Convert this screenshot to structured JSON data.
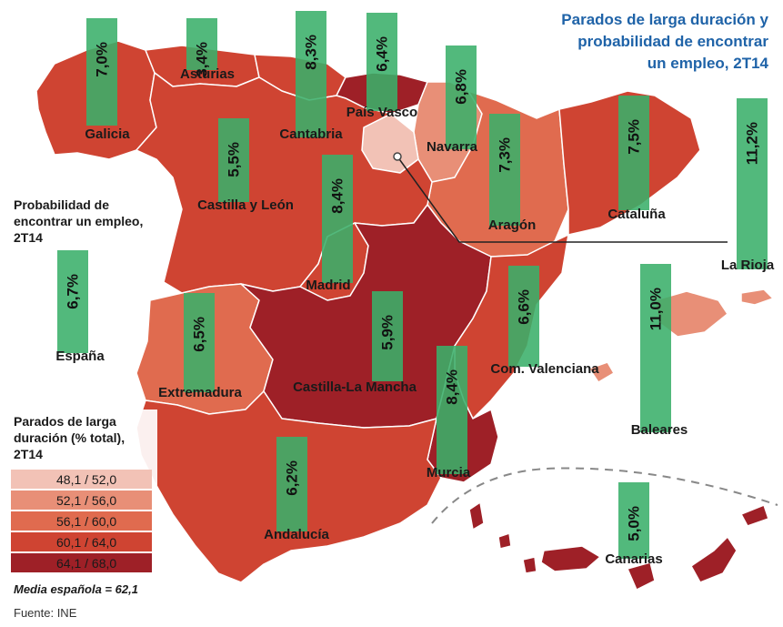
{
  "title": [
    "Parados de larga duración y",
    "probabilidad de encontrar",
    "un empleo, 2T14"
  ],
  "prob_caption": [
    "Probabilidad de",
    "encontrar un empleo,",
    "2T14"
  ],
  "legend": {
    "title": [
      "Parados de larga",
      "duración (% total),",
      "2T14"
    ],
    "classes": [
      {
        "label": "48,1 / 52,0",
        "color": "#f2c2b6"
      },
      {
        "label": "52,1 / 56,0",
        "color": "#e88f77"
      },
      {
        "label": "56,1 / 60,0",
        "color": "#e06b4f"
      },
      {
        "label": "60,1 / 64,0",
        "color": "#cf4432"
      },
      {
        "label": "64,1 / 68,0",
        "color": "#9e2027"
      }
    ]
  },
  "average_note": "Media española = 62,1",
  "source": "Fuente: INE",
  "colors": {
    "bar": "#3aaf6a",
    "title": "#1f63a8"
  },
  "regions": [
    {
      "name": "Galicia",
      "prob": "7,0%",
      "prob_value": 7.0,
      "class": 3
    },
    {
      "name": "Asturias",
      "prob": "3,4%",
      "prob_value": 3.4,
      "class": 3
    },
    {
      "name": "Cantabria",
      "prob": "8,3%",
      "prob_value": 8.3,
      "class": 3
    },
    {
      "name": "País Vasco",
      "prob": "6,4%",
      "prob_value": 6.4,
      "class": 4
    },
    {
      "name": "Navarra",
      "prob": "6,8%",
      "prob_value": 6.8,
      "class": 1
    },
    {
      "name": "Aragón",
      "prob": "7,3%",
      "prob_value": 7.3,
      "class": 2
    },
    {
      "name": "Cataluña",
      "prob": "7,5%",
      "prob_value": 7.5,
      "class": 3
    },
    {
      "name": "La Rioja",
      "prob": "11,2%",
      "prob_value": 11.2,
      "class": 0
    },
    {
      "name": "Castilla y León",
      "prob": "5,5%",
      "prob_value": 5.5,
      "class": 3
    },
    {
      "name": "Madrid",
      "prob": "8,4%",
      "prob_value": 8.4,
      "class": 3
    },
    {
      "name": "España",
      "prob": "6,7%",
      "prob_value": 6.7,
      "class": null
    },
    {
      "name": "Extremadura",
      "prob": "6,5%",
      "prob_value": 6.5,
      "class": 2
    },
    {
      "name": "Castilla-La Mancha",
      "prob": "5,9%",
      "prob_value": 5.9,
      "class": 4
    },
    {
      "name": "Com. Valenciana",
      "prob": "6,6%",
      "prob_value": 6.6,
      "class": 3
    },
    {
      "name": "Murcia",
      "prob": "8,4%",
      "prob_value": 8.4,
      "class": 4
    },
    {
      "name": "Baleares",
      "prob": "11,0%",
      "prob_value": 11.0,
      "class": 1
    },
    {
      "name": "Andalucía",
      "prob": "6,2%",
      "prob_value": 6.2,
      "class": 3
    },
    {
      "name": "Canarias",
      "prob": "5,0%",
      "prob_value": 5.0,
      "class": 4
    }
  ]
}
